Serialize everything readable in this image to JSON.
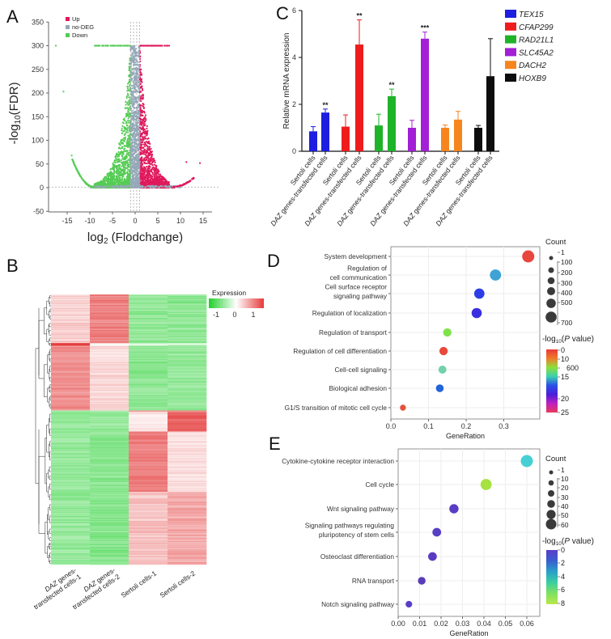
{
  "chart_data": [
    {
      "panel": "A",
      "type": "scatter",
      "xlabel_main": "log",
      "xlabel_sub": "2",
      "xlabel_rest": " (Flodchange)",
      "ylabel_main": "-log",
      "ylabel_sub": "10",
      "ylabel_rest": "(FDR)",
      "xlim": [
        -18,
        17
      ],
      "ylim": [
        -50,
        350
      ],
      "xticks": [
        -15,
        -10,
        -5,
        0,
        5,
        10,
        15
      ],
      "yticks": [
        -50,
        0,
        50,
        100,
        150,
        200,
        250,
        300,
        350
      ],
      "threshold_lines": {
        "x": [
          -1,
          -0.35,
          0.35,
          1
        ],
        "y": [
          1.3
        ]
      },
      "legend_placement": "top-left",
      "legend": [
        {
          "name": "Up",
          "color": "#e0185c"
        },
        {
          "name": "no-DEG",
          "color": "#93a9bb"
        },
        {
          "name": "Down",
          "color": "#55cc55"
        }
      ],
      "notable_points": [
        {
          "x": -17.5,
          "y": 300,
          "group": "Down"
        },
        {
          "x": -15.8,
          "y": 203,
          "group": "Down"
        },
        {
          "x": -14,
          "y": 68,
          "group": "Down"
        },
        {
          "x": 11.3,
          "y": 54,
          "group": "Up"
        },
        {
          "x": 14.3,
          "y": 52,
          "group": "Up"
        },
        {
          "x": 7.5,
          "y": 300,
          "group": "Up"
        }
      ]
    },
    {
      "panel": "B",
      "type": "heatmap",
      "columns": [
        {
          "it": "DAZ",
          "l1": " genes-",
          "l2": "transfected cells-1"
        },
        {
          "it": "DAZ",
          "l1": " genes-",
          "l2": "transfected cells-2"
        },
        {
          "it": "",
          "l1": "Sertoli cells-1",
          "l2": ""
        },
        {
          "it": "",
          "l1": "Sertoli cells-2",
          "l2": ""
        }
      ],
      "legend_title": "Expression",
      "legend_ticks": [
        "-1",
        "0",
        "1"
      ],
      "colors": {
        "low": "#1fcf2a",
        "mid": "#ffffff",
        "high": "#e43a3a"
      },
      "row_blocks": [
        {
          "rows": 60,
          "values": [
            0.35,
            0.95,
            -0.75,
            -0.75
          ]
        },
        {
          "rows": 3,
          "values": [
            1.5,
            0.05,
            -0.2,
            -0.3
          ]
        },
        {
          "rows": 80,
          "values": [
            0.85,
            0.3,
            -0.75,
            -0.7
          ]
        },
        {
          "rows": 2,
          "values": [
            -0.6,
            -0.6,
            0.9,
            0.9
          ]
        },
        {
          "rows": 24,
          "values": [
            -0.7,
            -0.7,
            0.2,
            1.2
          ]
        },
        {
          "rows": 74,
          "values": [
            -0.7,
            -0.8,
            1.0,
            0.25
          ]
        },
        {
          "rows": 90,
          "values": [
            -0.7,
            -0.8,
            0.45,
            0.65
          ]
        }
      ]
    },
    {
      "panel": "C",
      "type": "bar",
      "ylabel": "Relative mRNA expression",
      "ylim": [
        0,
        6
      ],
      "yticks": [
        0,
        2,
        4,
        6
      ],
      "cat_sertoli": "Sertoli cells",
      "cat_daz_it": "DAZ",
      "cat_daz_rest": " genes-transfected cells",
      "legend_placement": "right",
      "series": [
        {
          "name": "TEX15",
          "color": "#1d1ee0",
          "values": [
            0.85,
            1.65
          ],
          "errors": [
            0.2,
            0.15
          ],
          "sig": "**"
        },
        {
          "name": "CFAP299",
          "color": "#ee1c1c",
          "values": [
            1.05,
            4.55
          ],
          "errors": [
            0.5,
            1.05
          ],
          "sig": "**"
        },
        {
          "name": "RAD21L1",
          "color": "#1fb32a",
          "values": [
            1.1,
            2.35
          ],
          "errors": [
            0.48,
            0.3
          ],
          "sig": "**"
        },
        {
          "name": "SLC45A2",
          "color": "#a21fd6",
          "values": [
            1.0,
            4.8
          ],
          "errors": [
            0.32,
            0.28
          ],
          "sig": "***"
        },
        {
          "name": "DACH2",
          "color": "#f7851e",
          "values": [
            1.0,
            1.35
          ],
          "errors": [
            0.12,
            0.35
          ],
          "sig": ""
        },
        {
          "name": "HOXB9",
          "color": "#0d0d0d",
          "values": [
            1.0,
            3.2
          ],
          "errors": [
            0.1,
            1.6
          ],
          "sig": ""
        }
      ]
    },
    {
      "panel": "D",
      "type": "scatter",
      "xlabel": "GeneRation",
      "xlim": [
        0,
        0.39
      ],
      "xticks": [
        "0.0",
        "0.1",
        "0.2",
        "0.3"
      ],
      "grid": true,
      "count_title": "Count",
      "count_ticks": [
        "1",
        "100",
        "200",
        "300",
        "400",
        "500",
        "700"
      ],
      "p_title_main": "-log",
      "p_title_sub": "10",
      "p_title_it": "P",
      "p_title_rest": " value)",
      "p_title_open": "(",
      "p_ticks": [
        "0",
        "10",
        "600",
        "15",
        "20",
        "25"
      ],
      "p_gradient": [
        "#e83a3a",
        "#f07a2a",
        "#8be03a",
        "#3ad0b0",
        "#2a50e8",
        "#4a20d8",
        "#c020c0",
        "#e83a5a"
      ],
      "terms": [
        {
          "lines": [
            "System development"
          ],
          "gene_ratio": 0.365,
          "count": 700,
          "p": 2,
          "color": "#e8473d"
        },
        {
          "lines": [
            "Regulation of",
            "cell communication"
          ],
          "gene_ratio": 0.278,
          "count": 550,
          "p": 16,
          "color": "#3ea3d4"
        },
        {
          "lines": [
            "Cell surface receptor",
            "signaling pathway"
          ],
          "gene_ratio": 0.235,
          "count": 420,
          "p": 19,
          "color": "#2c3ee6"
        },
        {
          "lines": [
            "Regulation of localization"
          ],
          "gene_ratio": 0.228,
          "count": 400,
          "p": 19.5,
          "color": "#3a2fe0"
        },
        {
          "lines": [
            "Regulation of transport"
          ],
          "gene_ratio": 0.15,
          "count": 200,
          "p": 13,
          "color": "#7fe24a"
        },
        {
          "lines": [
            "Regulation of cell differentiation"
          ],
          "gene_ratio": 0.14,
          "count": 200,
          "p": 3,
          "color": "#e64a3a"
        },
        {
          "lines": [
            "Cell-cell signaling"
          ],
          "gene_ratio": 0.137,
          "count": 170,
          "p": 15,
          "color": "#72d2aa"
        },
        {
          "lines": [
            "Biological adhesion"
          ],
          "gene_ratio": 0.13,
          "count": 150,
          "p": 18,
          "color": "#2364d8"
        },
        {
          "lines": [
            "G1/S transition of mitotic cell cycle"
          ],
          "gene_ratio": 0.032,
          "count": 40,
          "p": 3,
          "color": "#e2533e"
        }
      ]
    },
    {
      "panel": "E",
      "type": "scatter",
      "xlabel": "GeneRation",
      "xlim": [
        0,
        0.066
      ],
      "xticks": [
        "0.00",
        "0.01",
        "0.02",
        "0.03",
        "0.04",
        "0.05",
        "0.06"
      ],
      "grid": true,
      "count_title": "Count",
      "count_ticks": [
        "1",
        "10",
        "20",
        "30",
        "40",
        "50",
        "60"
      ],
      "p_title_main": "-log",
      "p_title_sub": "10",
      "p_title_it": "P",
      "p_title_rest": " value)",
      "p_title_open": "(",
      "p_ticks": [
        "0",
        "2",
        "4",
        "6",
        "8"
      ],
      "p_gradient": [
        "#5a3cc8",
        "#3a5ed0",
        "#2aa0c8",
        "#3acfa0",
        "#80e060",
        "#b8e84a"
      ],
      "terms": [
        {
          "lines": [
            "Cytokine-cytokine receptor interaction"
          ],
          "gene_ratio": 0.06,
          "count": 60,
          "p": 4.5,
          "color": "#46d0d4"
        },
        {
          "lines": [
            "Cell cycle"
          ],
          "gene_ratio": 0.041,
          "count": 45,
          "p": 7.2,
          "color": "#a6e240"
        },
        {
          "lines": [
            "Wnt signaling pathway"
          ],
          "gene_ratio": 0.026,
          "count": 25,
          "p": 0.8,
          "color": "#5a3cc6"
        },
        {
          "lines": [
            "Signaling pathways regulating",
            "pluripotency of stem cells"
          ],
          "gene_ratio": 0.018,
          "count": 20,
          "p": 0.8,
          "color": "#5840c4"
        },
        {
          "lines": [
            "Osteoclast differentiation"
          ],
          "gene_ratio": 0.016,
          "count": 20,
          "p": 0.8,
          "color": "#5a3cc2"
        },
        {
          "lines": [
            "RNA transport"
          ],
          "gene_ratio": 0.011,
          "count": 12,
          "p": 0.6,
          "color": "#5a3cb8"
        },
        {
          "lines": [
            "Notch signaling pathway"
          ],
          "gene_ratio": 0.005,
          "count": 6,
          "p": 0.5,
          "color": "#5a3cc8"
        }
      ]
    }
  ]
}
